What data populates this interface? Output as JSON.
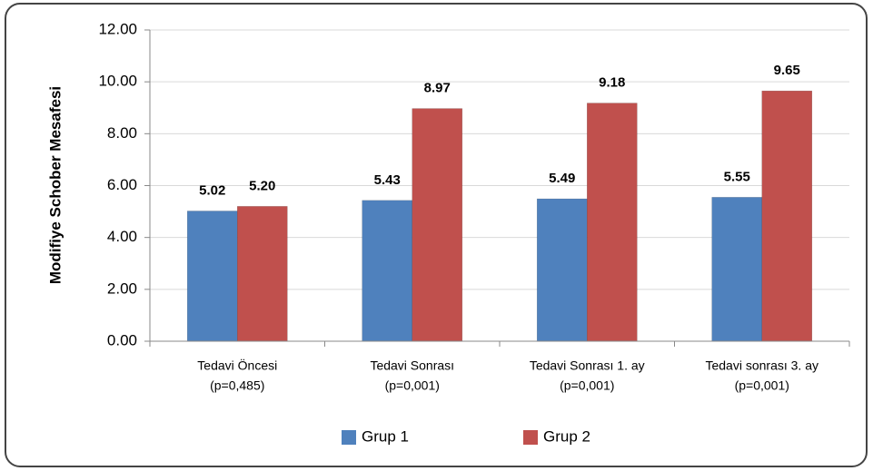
{
  "chart_data": {
    "type": "bar",
    "y_axis_label": "Modifiye Schober Mesafesi",
    "categories": [
      [
        "Tedavi Öncesi",
        "(p=0,485)"
      ],
      [
        "Tedavi Sonrası",
        "(p=0,001)"
      ],
      [
        "Tedavi Sonrası 1. ay",
        "(p=0,001)"
      ],
      [
        "Tedavi sonrası 3. ay",
        "(p=0,001)"
      ]
    ],
    "series": [
      {
        "name": "Grup 1",
        "color": "#4f81bd",
        "values": [
          5.02,
          5.43,
          5.49,
          5.55
        ],
        "value_labels": [
          "5.02",
          "5.43",
          "5.49",
          "5.55"
        ]
      },
      {
        "name": "Grup 2",
        "color": "#c0504d",
        "values": [
          5.2,
          8.97,
          9.18,
          9.65
        ],
        "value_labels": [
          "5.20",
          "8.97",
          "9.18",
          "9.65"
        ]
      }
    ],
    "ylim": [
      0,
      12
    ],
    "yticks": [
      {
        "value": 0,
        "label": "0.00"
      },
      {
        "value": 2,
        "label": "2.00"
      },
      {
        "value": 4,
        "label": "4.00"
      },
      {
        "value": 6,
        "label": "6.00"
      },
      {
        "value": 8,
        "label": "8.00"
      },
      {
        "value": 10,
        "label": "10.00"
      },
      {
        "value": 12,
        "label": "12.00"
      }
    ],
    "grid": true,
    "legend": "bottom"
  }
}
